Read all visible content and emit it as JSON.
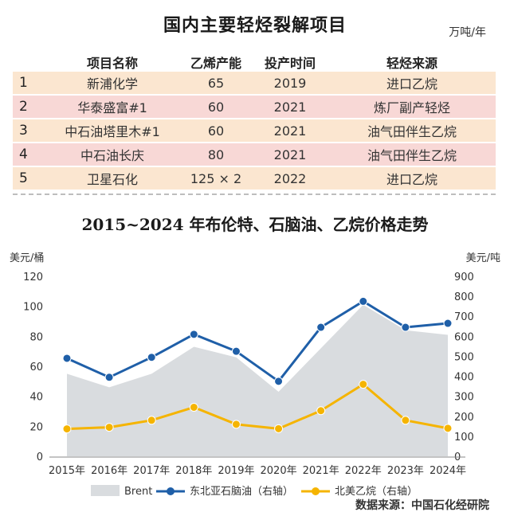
{
  "table": {
    "title": "国内主要轻烃裂解项目",
    "unit": "万吨/年",
    "headers": [
      "",
      "项目名称",
      "乙烯产能",
      "投产时间",
      "轻烃来源"
    ],
    "rows": [
      [
        "1",
        "新浦化学",
        "65",
        "2019",
        "进口乙烷"
      ],
      [
        "2",
        "华泰盛富#1",
        "60",
        "2021",
        "炼厂副产轻烃"
      ],
      [
        "3",
        "中石油塔里木#1",
        "60",
        "2021",
        "油气田伴生乙烷"
      ],
      [
        "4",
        "中石油长庆",
        "80",
        "2021",
        "油气田伴生乙烷"
      ],
      [
        "5",
        "卫星石化",
        "125 × 2",
        "2022",
        "进口乙烷"
      ]
    ]
  },
  "chart_data": {
    "type": "line",
    "title": "2015~2024 年布伦特、石脑油、乙烷价格走势",
    "ylabel_left": "美元/桶",
    "ylabel_right": "美元/吨",
    "ylim_left": [
      0,
      120
    ],
    "ylim_right": [
      0,
      900
    ],
    "yticks_left": [
      "120",
      "100",
      "80",
      "60",
      "40",
      "20",
      "0"
    ],
    "yticks_right": [
      "900",
      "800",
      "700",
      "600",
      "500",
      "400",
      "300",
      "200",
      "100",
      "0"
    ],
    "categories": [
      "2015年",
      "2016年",
      "2017年",
      "2018年",
      "2019年",
      "2020年",
      "2021年",
      "2022年",
      "2023年",
      "2024年"
    ],
    "series": [
      {
        "name": "Brent",
        "type": "area",
        "axis": "left",
        "color": "#d9dcdf",
        "values": [
          55,
          46,
          55,
          73,
          66,
          43,
          72,
          101,
          84,
          81
        ]
      },
      {
        "name": "东北亚石脑油（右轴）",
        "type": "line",
        "axis": "right",
        "color": "#1f5fa8",
        "values": [
          490,
          395,
          495,
          610,
          525,
          375,
          645,
          775,
          645,
          665
        ]
      },
      {
        "name": "北美乙烷（右轴）",
        "type": "line",
        "axis": "right",
        "color": "#f5b400",
        "values": [
          137,
          145,
          180,
          245,
          160,
          138,
          228,
          360,
          180,
          140
        ]
      }
    ],
    "legend_position": "bottom",
    "source": "数据来源：中国石化经研院"
  }
}
